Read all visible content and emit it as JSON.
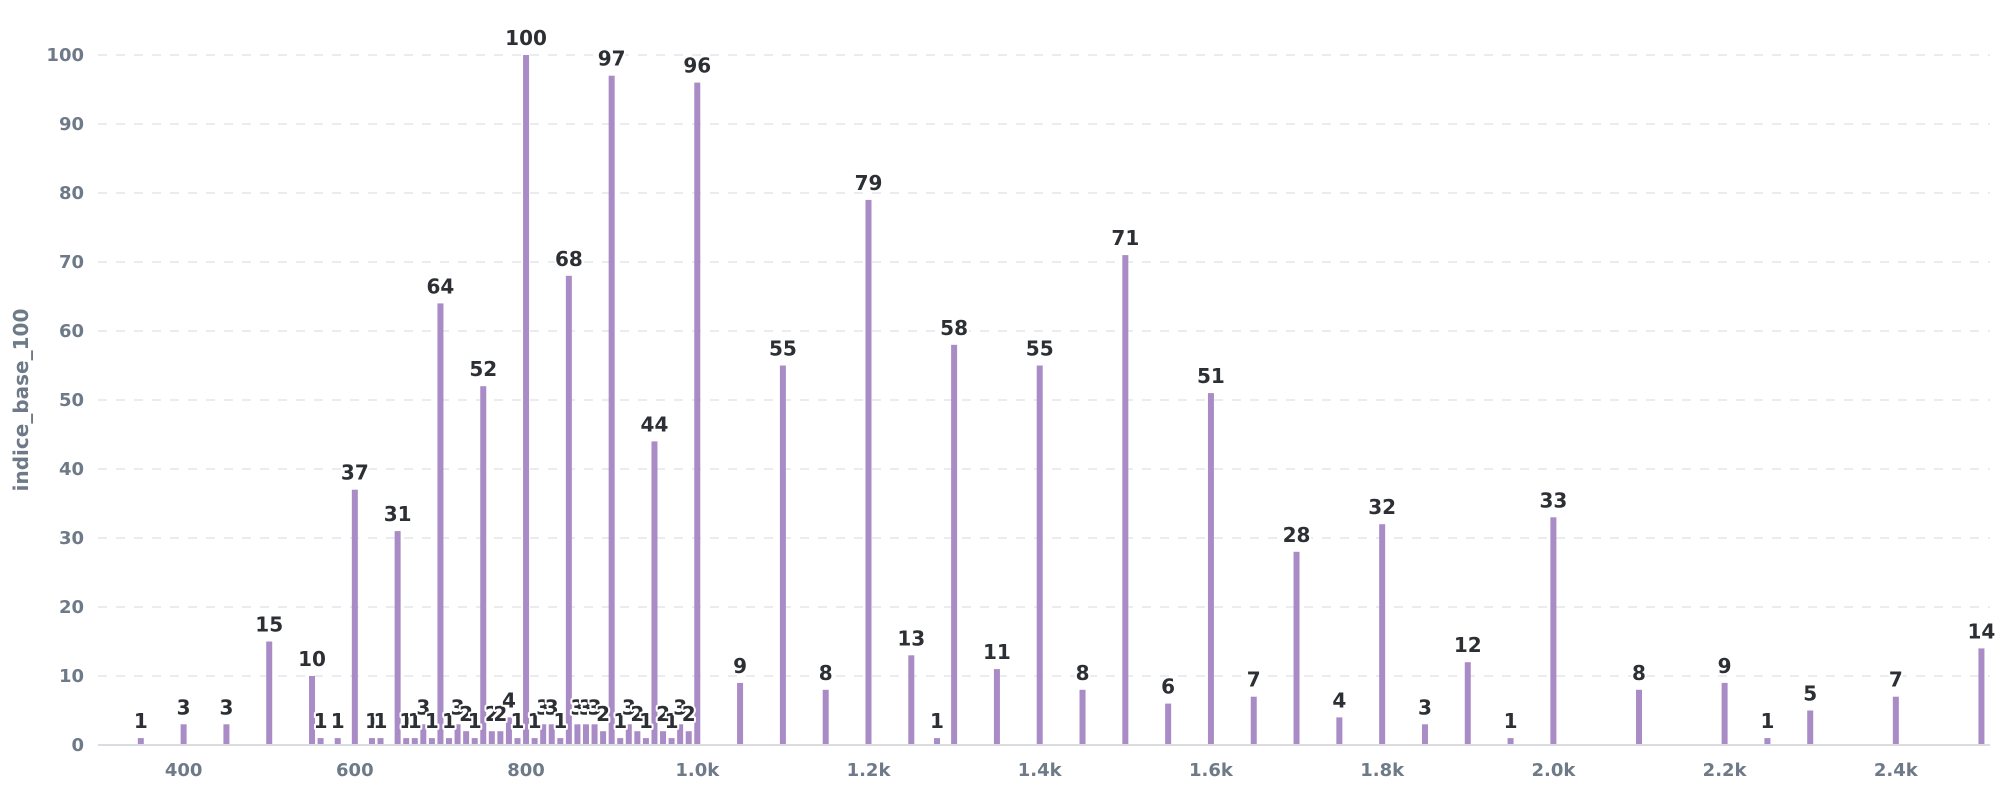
{
  "chart_data": {
    "type": "bar",
    "title": "",
    "xlabel": "",
    "ylabel": "indice_base_100",
    "xlim": [
      300,
      2510
    ],
    "ylim": [
      0,
      100
    ],
    "y_ticks": [
      "0",
      "10",
      "20",
      "30",
      "40",
      "50",
      "60",
      "70",
      "80",
      "90",
      "100"
    ],
    "x_ticks": [
      {
        "value": 400,
        "label": "400"
      },
      {
        "value": 600,
        "label": "600"
      },
      {
        "value": 800,
        "label": "800"
      },
      {
        "value": 1000,
        "label": "1.0k"
      },
      {
        "value": 1200,
        "label": "1.2k"
      },
      {
        "value": 1400,
        "label": "1.4k"
      },
      {
        "value": 1600,
        "label": "1.6k"
      },
      {
        "value": 1800,
        "label": "1.8k"
      },
      {
        "value": 2000,
        "label": "2.0k"
      },
      {
        "value": 2200,
        "label": "2.2k"
      },
      {
        "value": 2400,
        "label": "2.4k"
      }
    ],
    "grid": true,
    "color": "#a98bc6",
    "series": [
      {
        "points": [
          {
            "x": 350,
            "y": 1
          },
          {
            "x": 400,
            "y": 3
          },
          {
            "x": 450,
            "y": 3
          },
          {
            "x": 500,
            "y": 15
          },
          {
            "x": 550,
            "y": 10
          },
          {
            "x": 560,
            "y": 1
          },
          {
            "x": 580,
            "y": 1
          },
          {
            "x": 600,
            "y": 37
          },
          {
            "x": 620,
            "y": 1
          },
          {
            "x": 630,
            "y": 1
          },
          {
            "x": 650,
            "y": 31
          },
          {
            "x": 660,
            "y": 1
          },
          {
            "x": 670,
            "y": 1
          },
          {
            "x": 680,
            "y": 3
          },
          {
            "x": 690,
            "y": 1
          },
          {
            "x": 700,
            "y": 64
          },
          {
            "x": 710,
            "y": 1
          },
          {
            "x": 720,
            "y": 3
          },
          {
            "x": 730,
            "y": 2
          },
          {
            "x": 740,
            "y": 1
          },
          {
            "x": 750,
            "y": 52
          },
          {
            "x": 760,
            "y": 2
          },
          {
            "x": 770,
            "y": 2
          },
          {
            "x": 780,
            "y": 4
          },
          {
            "x": 790,
            "y": 1
          },
          {
            "x": 800,
            "y": 100
          },
          {
            "x": 810,
            "y": 1
          },
          {
            "x": 820,
            "y": 3
          },
          {
            "x": 830,
            "y": 3
          },
          {
            "x": 840,
            "y": 1
          },
          {
            "x": 850,
            "y": 68
          },
          {
            "x": 860,
            "y": 3
          },
          {
            "x": 870,
            "y": 3
          },
          {
            "x": 880,
            "y": 3
          },
          {
            "x": 890,
            "y": 2
          },
          {
            "x": 900,
            "y": 97
          },
          {
            "x": 910,
            "y": 1
          },
          {
            "x": 920,
            "y": 3
          },
          {
            "x": 930,
            "y": 2
          },
          {
            "x": 940,
            "y": 1
          },
          {
            "x": 950,
            "y": 44
          },
          {
            "x": 960,
            "y": 2
          },
          {
            "x": 970,
            "y": 1
          },
          {
            "x": 980,
            "y": 3
          },
          {
            "x": 990,
            "y": 2
          },
          {
            "x": 1000,
            "y": 96
          },
          {
            "x": 1050,
            "y": 9
          },
          {
            "x": 1100,
            "y": 55
          },
          {
            "x": 1150,
            "y": 8
          },
          {
            "x": 1200,
            "y": 79
          },
          {
            "x": 1250,
            "y": 13
          },
          {
            "x": 1280,
            "y": 1
          },
          {
            "x": 1300,
            "y": 58
          },
          {
            "x": 1350,
            "y": 11
          },
          {
            "x": 1400,
            "y": 55
          },
          {
            "x": 1450,
            "y": 8
          },
          {
            "x": 1500,
            "y": 71
          },
          {
            "x": 1550,
            "y": 6
          },
          {
            "x": 1600,
            "y": 51
          },
          {
            "x": 1650,
            "y": 7
          },
          {
            "x": 1700,
            "y": 28
          },
          {
            "x": 1750,
            "y": 4
          },
          {
            "x": 1800,
            "y": 32
          },
          {
            "x": 1850,
            "y": 3
          },
          {
            "x": 1900,
            "y": 12
          },
          {
            "x": 1950,
            "y": 1
          },
          {
            "x": 2000,
            "y": 33
          },
          {
            "x": 2100,
            "y": 8
          },
          {
            "x": 2200,
            "y": 9
          },
          {
            "x": 2250,
            "y": 1
          },
          {
            "x": 2300,
            "y": 5
          },
          {
            "x": 2400,
            "y": 7
          },
          {
            "x": 2500,
            "y": 14
          }
        ]
      }
    ]
  }
}
